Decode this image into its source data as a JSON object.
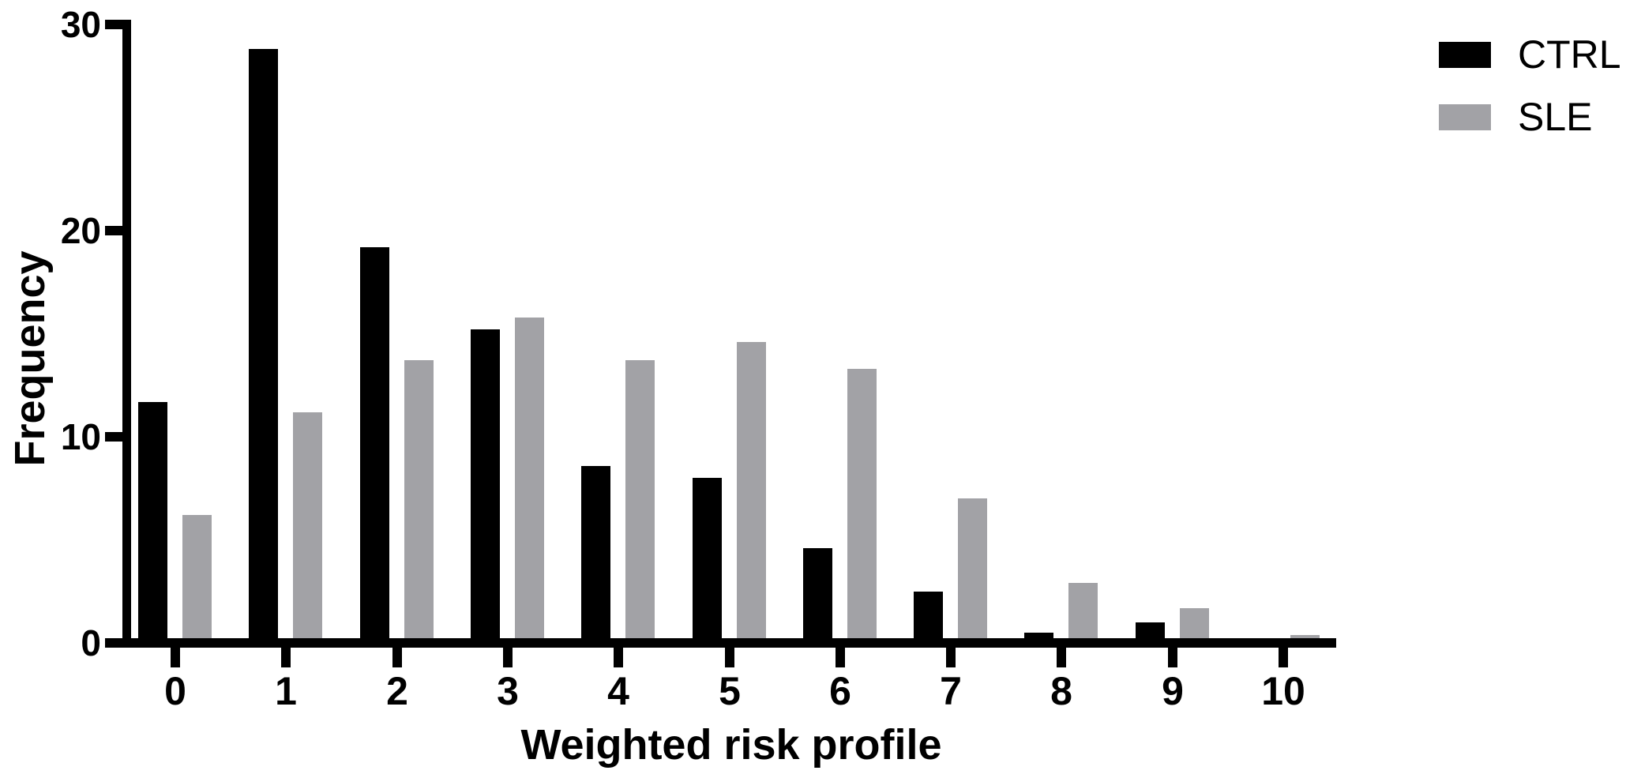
{
  "figure": {
    "background_color": "#ffffff",
    "axis_color": "#000000",
    "text_color": "#000000"
  },
  "chart_data": {
    "type": "bar",
    "title": "",
    "xlabel": "Weighted risk profile",
    "ylabel": "Frequency",
    "categories": [
      "0",
      "1",
      "2",
      "3",
      "4",
      "5",
      "6",
      "7",
      "8",
      "9",
      "10"
    ],
    "series": [
      {
        "name": "CTRL",
        "color": "#000000",
        "values": [
          11.7,
          28.8,
          19.2,
          15.2,
          8.6,
          8.0,
          4.6,
          2.5,
          0.5,
          1.0,
          0.0
        ]
      },
      {
        "name": "SLE",
        "color": "#a2a2a6",
        "values": [
          6.2,
          11.2,
          13.7,
          15.8,
          13.7,
          14.6,
          13.3,
          7.0,
          2.9,
          1.7,
          0.4
        ]
      }
    ],
    "ylim": [
      0,
      30
    ],
    "yticks": [
      0,
      10,
      20,
      30
    ],
    "xlim_note": "grouped bars, two bars per category, no gridlines",
    "grid": false,
    "legend_position": "top-right"
  }
}
